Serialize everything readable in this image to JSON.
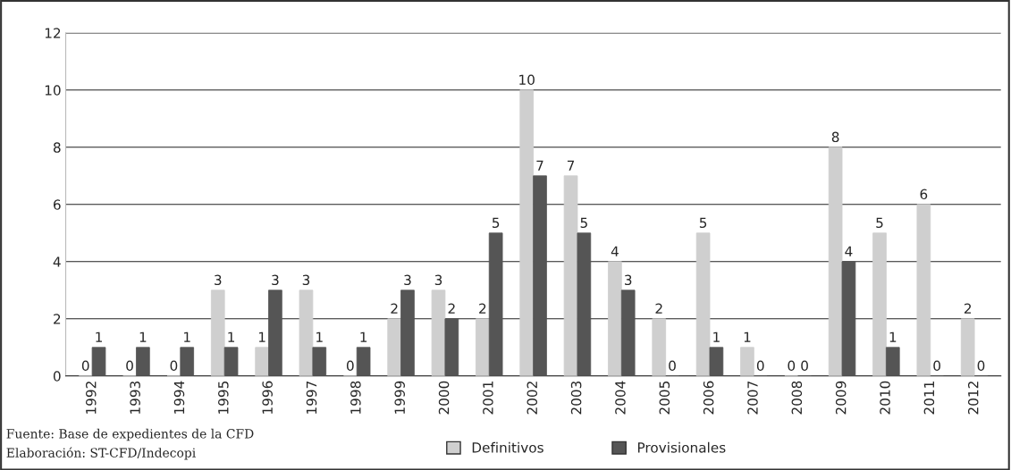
{
  "chart_data": {
    "type": "bar",
    "categories": [
      "1992",
      "1993",
      "1994",
      "1995",
      "1996",
      "1997",
      "1998",
      "1999",
      "2000",
      "2001",
      "2002",
      "2003",
      "2004",
      "2005",
      "2006",
      "2007",
      "2008",
      "2009",
      "2010",
      "2011",
      "2012"
    ],
    "series": [
      {
        "name": "Definitivos",
        "color": "#cfcfcf",
        "values": [
          0,
          0,
          0,
          3,
          1,
          3,
          0,
          2,
          3,
          2,
          10,
          7,
          4,
          2,
          5,
          1,
          0,
          8,
          5,
          6,
          2
        ]
      },
      {
        "name": "Provisionales",
        "color": "#555555",
        "values": [
          1,
          1,
          1,
          1,
          3,
          1,
          1,
          3,
          2,
          5,
          7,
          5,
          3,
          0,
          1,
          0,
          0,
          4,
          1,
          0,
          0
        ]
      }
    ],
    "ylim": [
      0,
      12
    ],
    "yticks": [
      0,
      2,
      4,
      6,
      8,
      10,
      12
    ],
    "grid": "y",
    "legend": "bottom",
    "data_labels": true,
    "annotations": [
      "Fuente: Base de expedientes de la CFD",
      "Elaboración: ST-CFD/Indecopi"
    ]
  }
}
